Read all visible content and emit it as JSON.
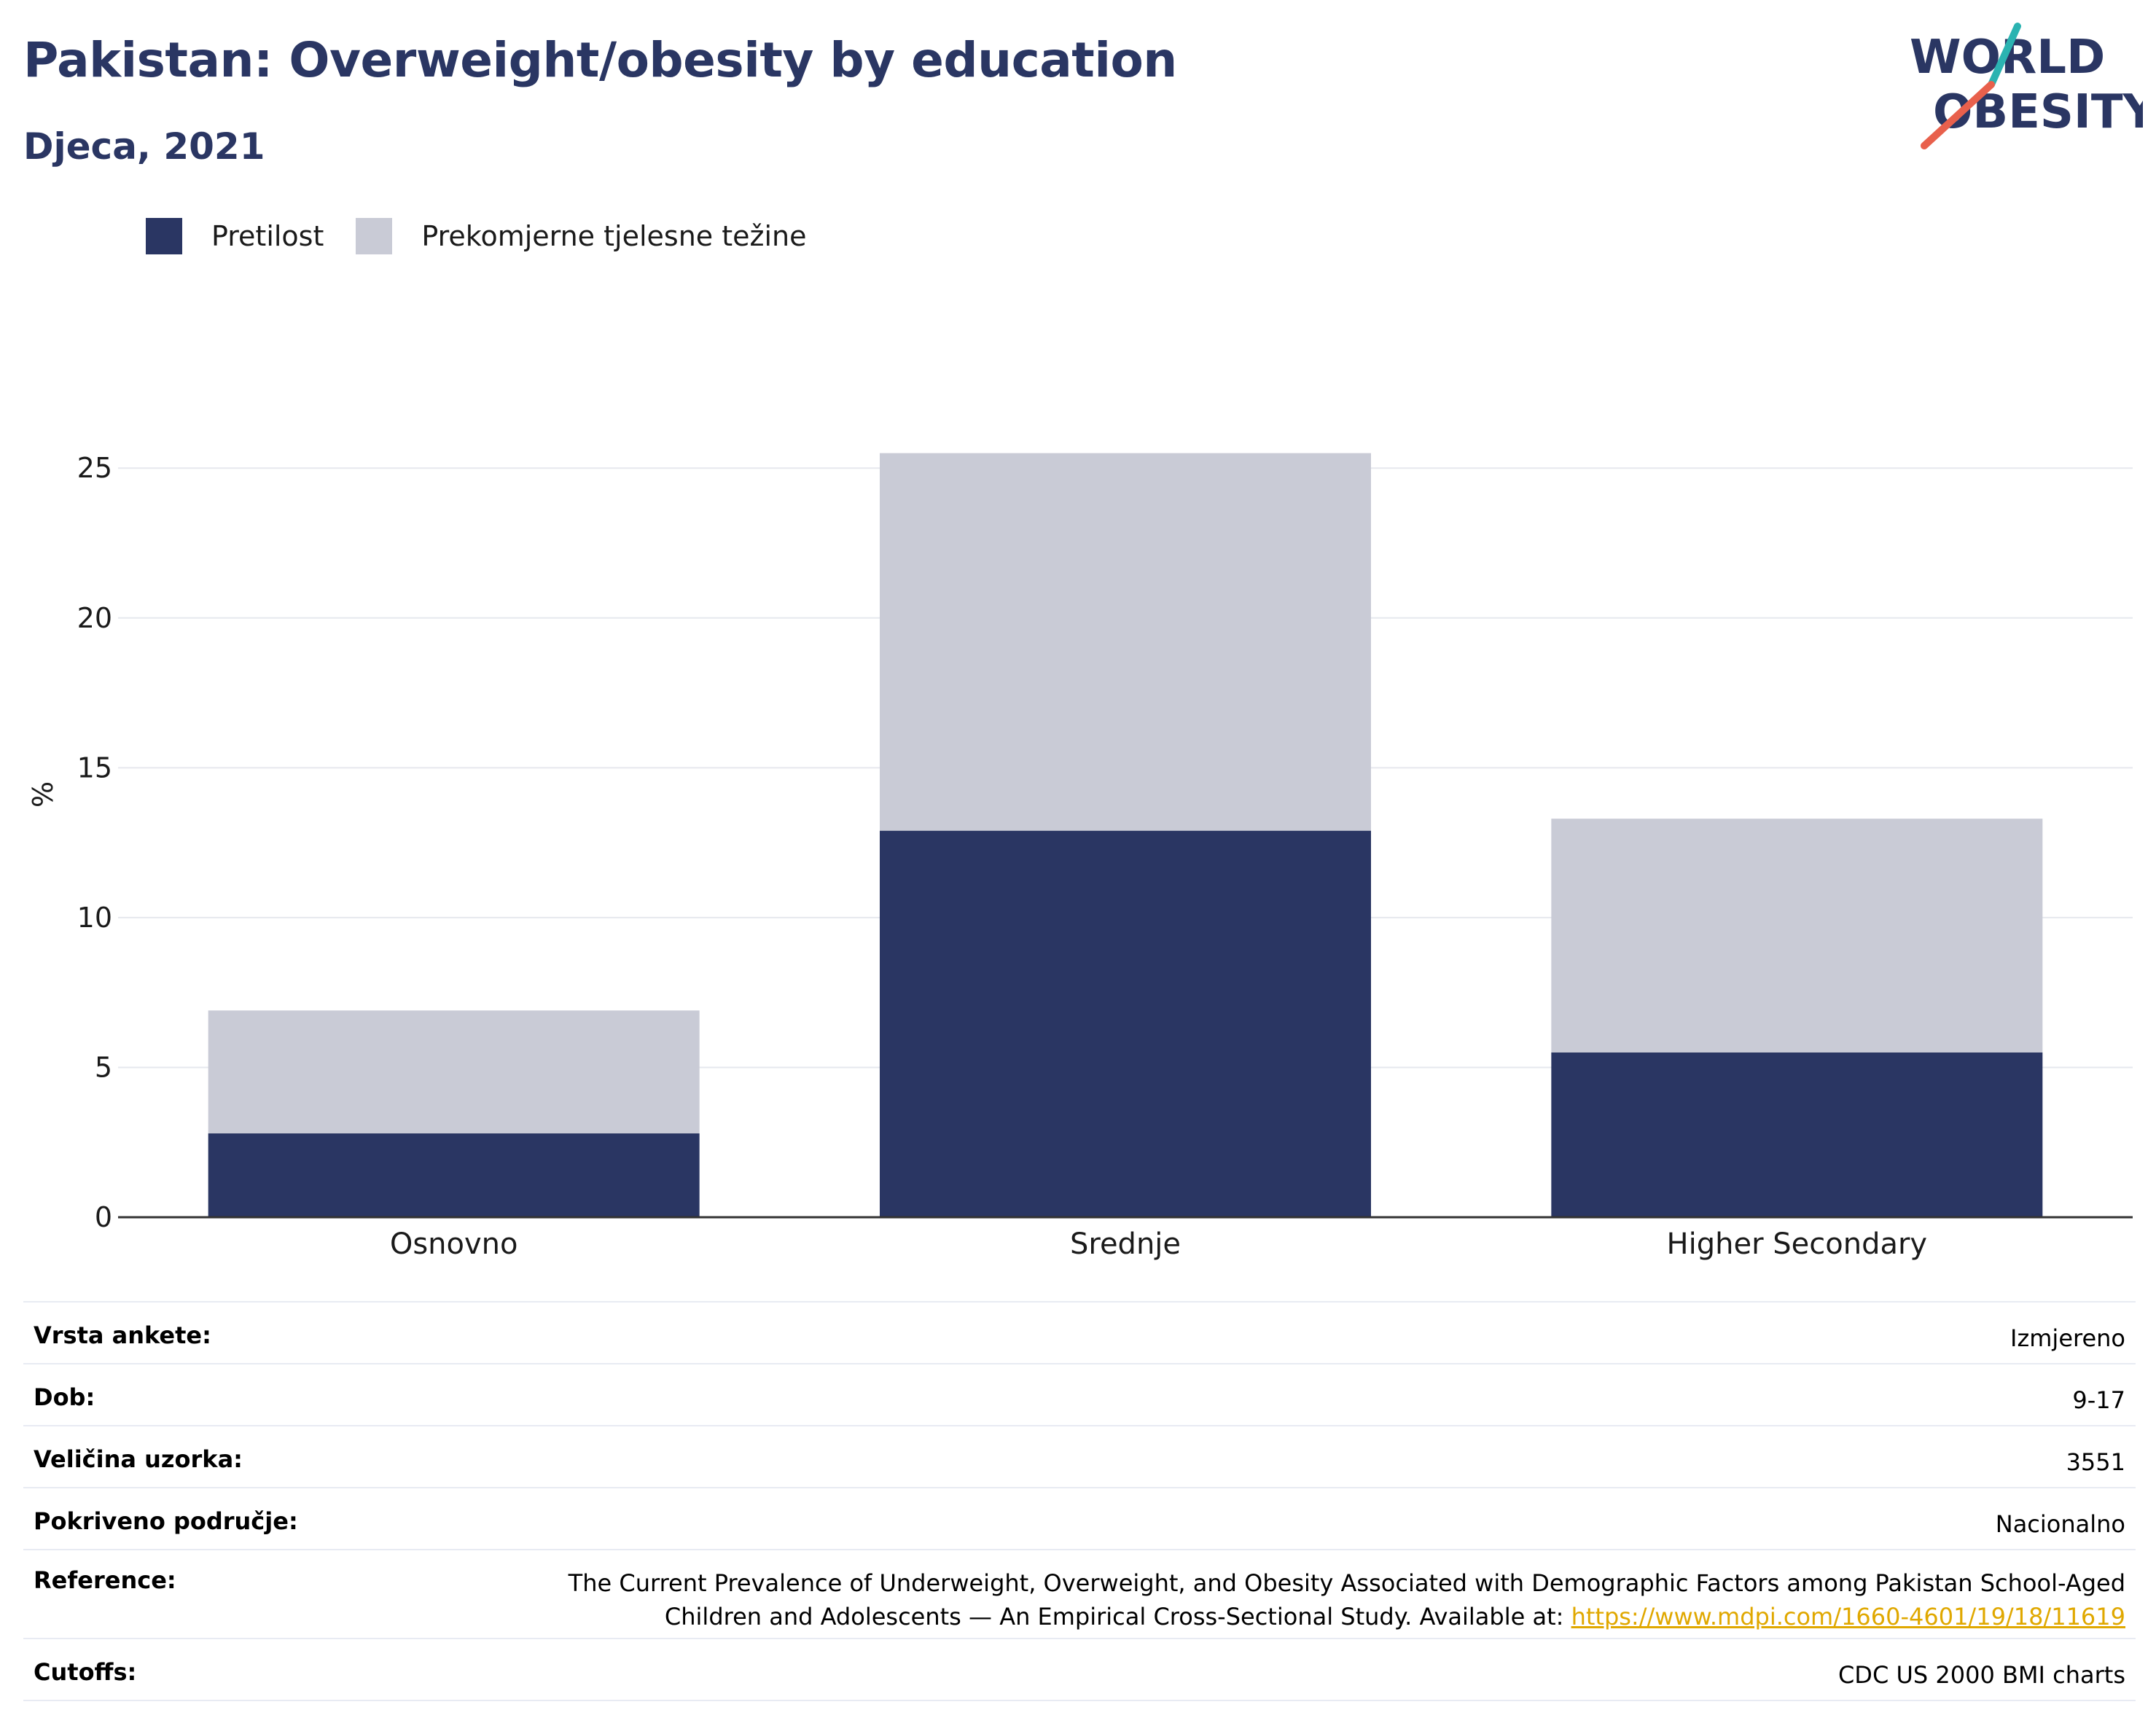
{
  "header": {
    "title": "Pakistan: Overweight/obesity by education",
    "subtitle": "Djeca, 2021"
  },
  "logo": {
    "line1": "WORLD",
    "line2": "OBESITY",
    "colors": {
      "text": "#2a3663",
      "slash_teal": "#2bb3b1",
      "slash_red": "#e8604c"
    }
  },
  "legend": [
    {
      "label": "Pretilost",
      "color": "#2a3663"
    },
    {
      "label": "Prekomjerne tjelesne težine",
      "color": "#c9cbd6"
    }
  ],
  "chart_data": {
    "type": "bar",
    "stacked": true,
    "categories": [
      "Osnovno",
      "Srednje",
      "Higher Secondary"
    ],
    "series": [
      {
        "name": "Pretilost",
        "color": "#2a3663",
        "values": [
          2.8,
          12.9,
          5.5
        ]
      },
      {
        "name": "Prekomjerne tjelesne težine",
        "color": "#c9cbd6",
        "values": [
          4.1,
          12.6,
          7.8
        ]
      }
    ],
    "ylabel": "%",
    "ylim": [
      0,
      27
    ],
    "yticks": [
      0,
      5,
      10,
      15,
      20,
      25
    ],
    "grid": true,
    "legend_position": "top-left"
  },
  "info": {
    "rows": [
      {
        "key": "Vrsta ankete:",
        "value": "Izmjereno"
      },
      {
        "key": "Dob:",
        "value": "9-17"
      },
      {
        "key": "Veličina uzorka:",
        "value": "3551"
      },
      {
        "key": "Pokriveno područje:",
        "value": "Nacionalno"
      }
    ],
    "reference": {
      "key": "Reference:",
      "line1": "The Current Prevalence of Underweight, Overweight, and Obesity Associated with Demographic Factors among Pakistan School-Aged",
      "line2": "Children and Adolescents — An Empirical Cross-Sectional Study. Available at: ",
      "link": "https://www.mdpi.com/1660-4601/19/18/11619"
    },
    "cutoffs": {
      "key": "Cutoffs:",
      "value": "CDC US 2000 BMI charts"
    }
  }
}
